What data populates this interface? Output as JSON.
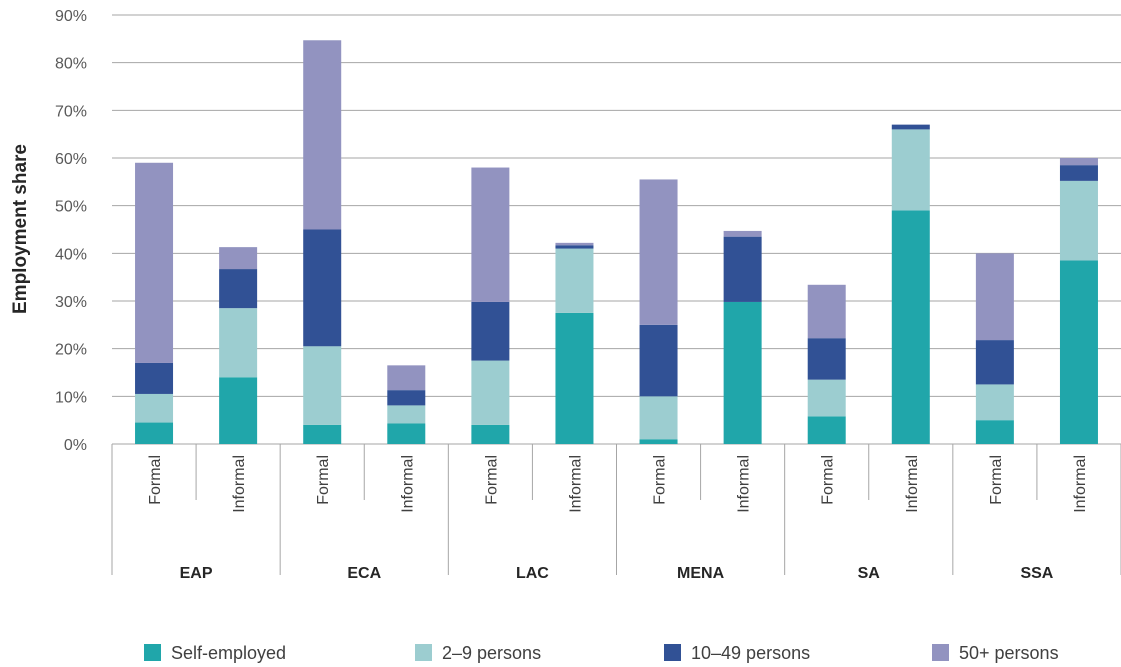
{
  "chart_data": {
    "type": "bar",
    "stacked": true,
    "title": "",
    "ylabel": "Employment share",
    "xlabel": "",
    "ylim": [
      0,
      90
    ],
    "yticks": [
      "0%",
      "10%",
      "20%",
      "30%",
      "40%",
      "50%",
      "60%",
      "70%",
      "80%",
      "90%"
    ],
    "grid": true,
    "legend_position": "bottom",
    "groups": [
      "EAP",
      "ECA",
      "LAC",
      "MENA",
      "SA",
      "SSA"
    ],
    "categories": [
      "Formal",
      "Informal",
      "Formal",
      "Informal",
      "Formal",
      "Informal",
      "Formal",
      "Informal",
      "Formal",
      "Informal",
      "Formal",
      "Informal"
    ],
    "series": [
      {
        "name": "Self-employed",
        "color": "#20a6aa",
        "values": [
          4.5,
          14,
          4,
          4.3,
          4,
          27.5,
          1,
          29.8,
          5.8,
          49,
          5,
          38.5
        ]
      },
      {
        "name": "2–9 persons",
        "color": "#9ccdd0",
        "values": [
          6,
          14.5,
          16.5,
          3.8,
          13.5,
          13.5,
          9,
          0,
          7.7,
          17,
          7.5,
          16.7
        ]
      },
      {
        "name": "10–49 persons",
        "color": "#315195",
        "values": [
          6.5,
          8.2,
          24.5,
          3.2,
          12.3,
          0.7,
          15,
          13.7,
          8.7,
          1,
          9.3,
          3.3
        ]
      },
      {
        "name": "50+ persons",
        "color": "#9293c0",
        "values": [
          42,
          4.6,
          39.7,
          5.2,
          28.2,
          0.5,
          30.5,
          1.2,
          11.2,
          0,
          18.2,
          1.5
        ]
      }
    ]
  }
}
